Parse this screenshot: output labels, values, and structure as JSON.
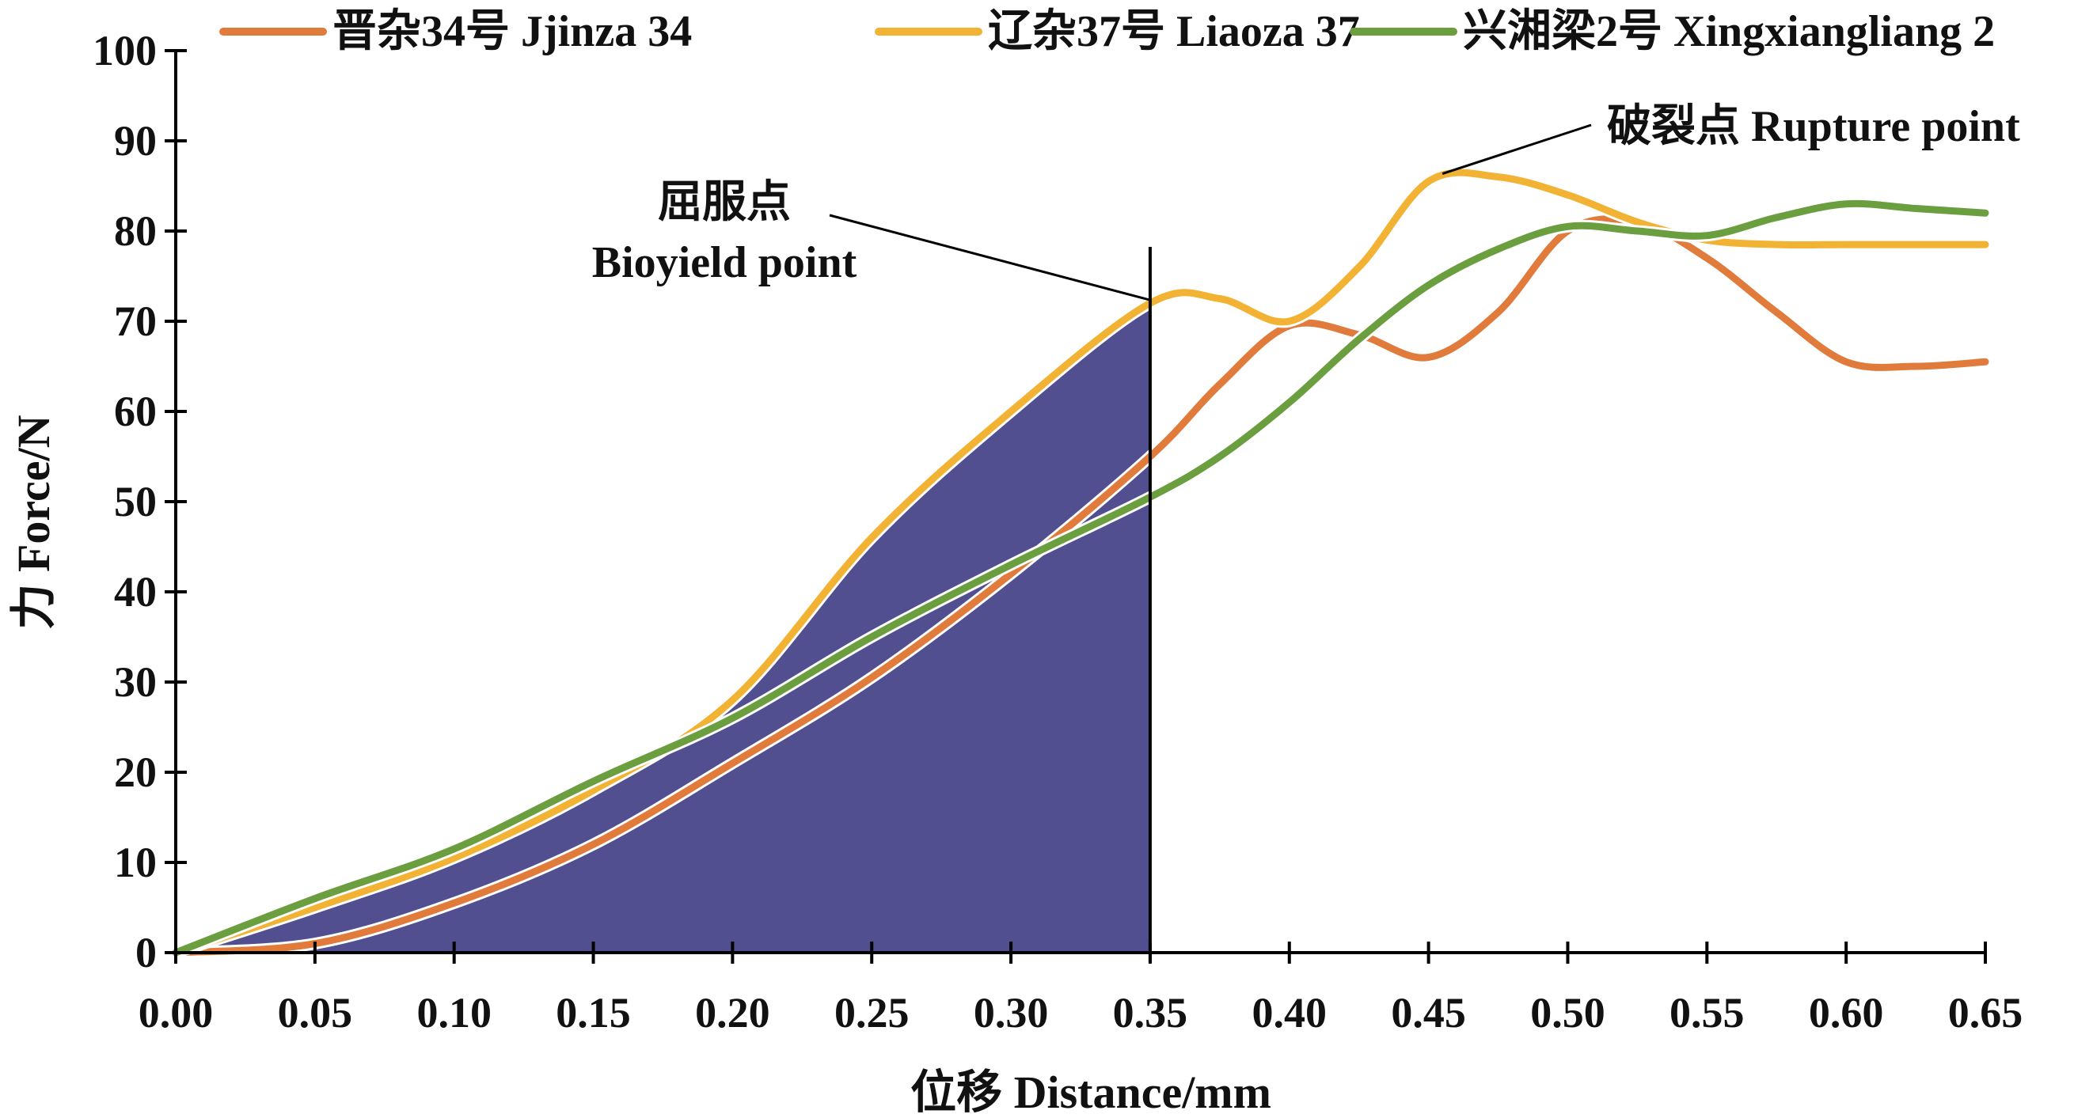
{
  "chart_data": {
    "type": "line",
    "xlabel": "位移 Distance/mm",
    "ylabel": "力 Force/N",
    "xlim": [
      0,
      0.65
    ],
    "ylim": [
      0,
      100
    ],
    "x_ticks": [
      "0.00",
      "0.05",
      "0.10",
      "0.15",
      "0.20",
      "0.25",
      "0.30",
      "0.35",
      "0.40",
      "0.45",
      "0.50",
      "0.55",
      "0.60",
      "0.65"
    ],
    "y_ticks": [
      "0",
      "10",
      "20",
      "30",
      "40",
      "50",
      "60",
      "70",
      "80",
      "90",
      "100"
    ],
    "legend_position": "top",
    "grid": false,
    "shaded_area": {
      "series": "辽杂37号 Liaoza 37",
      "x_from": 0,
      "x_to": 0.35,
      "color": "#514f8f"
    },
    "vertical_marker_x": 0.35,
    "series": [
      {
        "name": "晋杂34号 Jjinza 34",
        "color": "#e07b3c",
        "x": [
          0,
          0.05,
          0.1,
          0.15,
          0.2,
          0.25,
          0.3,
          0.35,
          0.375,
          0.4,
          0.425,
          0.45,
          0.475,
          0.5,
          0.525,
          0.55,
          0.575,
          0.6,
          0.625,
          0.65
        ],
        "y": [
          0,
          1,
          5.5,
          12,
          21,
          30.5,
          42,
          55,
          63,
          69.5,
          68.5,
          66,
          71,
          80,
          81,
          77,
          71,
          65.5,
          65,
          65.5
        ]
      },
      {
        "name": "辽杂37号 Liaoza 37",
        "color": "#f2b233",
        "x": [
          0,
          0.05,
          0.1,
          0.15,
          0.2,
          0.25,
          0.3,
          0.35,
          0.375,
          0.4,
          0.425,
          0.45,
          0.475,
          0.5,
          0.525,
          0.55,
          0.575,
          0.6,
          0.625,
          0.65
        ],
        "y": [
          0,
          5,
          10.5,
          18,
          28,
          46,
          60,
          72,
          72.5,
          70,
          76,
          85.5,
          86,
          84,
          81,
          79,
          78.5,
          78.5,
          78.5,
          78.5
        ]
      },
      {
        "name": "兴湘梁2号 Xingxiangliang 2",
        "color": "#6a9e3f",
        "x": [
          0,
          0.05,
          0.1,
          0.15,
          0.2,
          0.25,
          0.3,
          0.35,
          0.375,
          0.4,
          0.425,
          0.45,
          0.475,
          0.5,
          0.525,
          0.55,
          0.575,
          0.6,
          0.625,
          0.65
        ],
        "y": [
          0,
          6,
          11.5,
          19,
          26,
          35,
          43,
          50.5,
          55,
          61,
          68,
          74,
          78,
          80.5,
          80,
          79.5,
          81.5,
          83,
          82.5,
          82
        ]
      }
    ],
    "annotations": [
      {
        "label_zh": "屈服点",
        "label_en": "Bioyield point",
        "target_x": 0.35,
        "target_y": 72
      },
      {
        "label": "破裂点 Rupture point",
        "target_x": 0.455,
        "target_y": 86
      }
    ]
  }
}
